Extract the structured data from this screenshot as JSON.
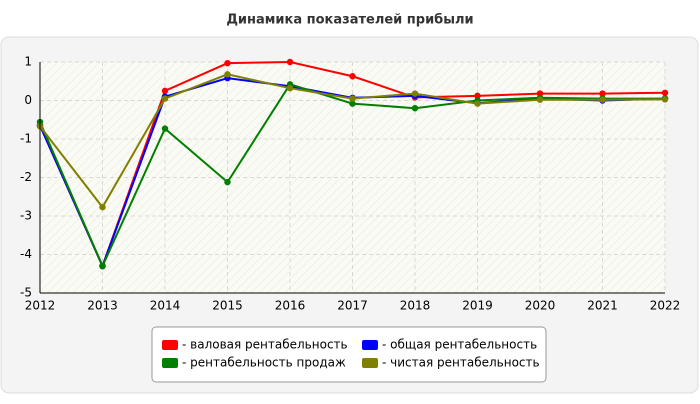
{
  "chart_data": {
    "type": "line",
    "title": "Динамика показателей прибыли",
    "x": [
      2012,
      2013,
      2014,
      2015,
      2016,
      2017,
      2018,
      2019,
      2020,
      2021,
      2022
    ],
    "xlim": [
      2012,
      2022
    ],
    "xticks": [
      2012,
      2013,
      2014,
      2015,
      2016,
      2017,
      2018,
      2019,
      2020,
      2021,
      2022
    ],
    "ylim": [
      -5,
      1
    ],
    "yticks": [
      1,
      0,
      -1,
      -2,
      -3,
      -4,
      -5
    ],
    "grid": true,
    "legend": "bottom",
    "series": [
      {
        "name": "- валовая рентабельность",
        "color": "#ff0000",
        "values": [
          -0.65,
          -4.3,
          0.25,
          0.97,
          1.0,
          0.63,
          0.08,
          0.12,
          0.18,
          0.18,
          0.2
        ]
      },
      {
        "name": "- общая рентабельность",
        "color": "#0000ff",
        "values": [
          -0.65,
          -4.3,
          0.1,
          0.58,
          0.37,
          0.07,
          0.12,
          -0.07,
          0.05,
          0.0,
          0.05
        ]
      },
      {
        "name": "- рентабельность продаж",
        "color": "#008000",
        "values": [
          -0.56,
          -4.3,
          -0.73,
          -2.12,
          0.42,
          -0.08,
          -0.2,
          0.0,
          0.07,
          0.05,
          0.05
        ]
      },
      {
        "name": "- чистая рентабельность",
        "color": "#808000",
        "values": [
          -0.67,
          -2.77,
          0.05,
          0.68,
          0.32,
          0.05,
          0.18,
          -0.08,
          0.02,
          0.02,
          0.03
        ]
      }
    ]
  }
}
